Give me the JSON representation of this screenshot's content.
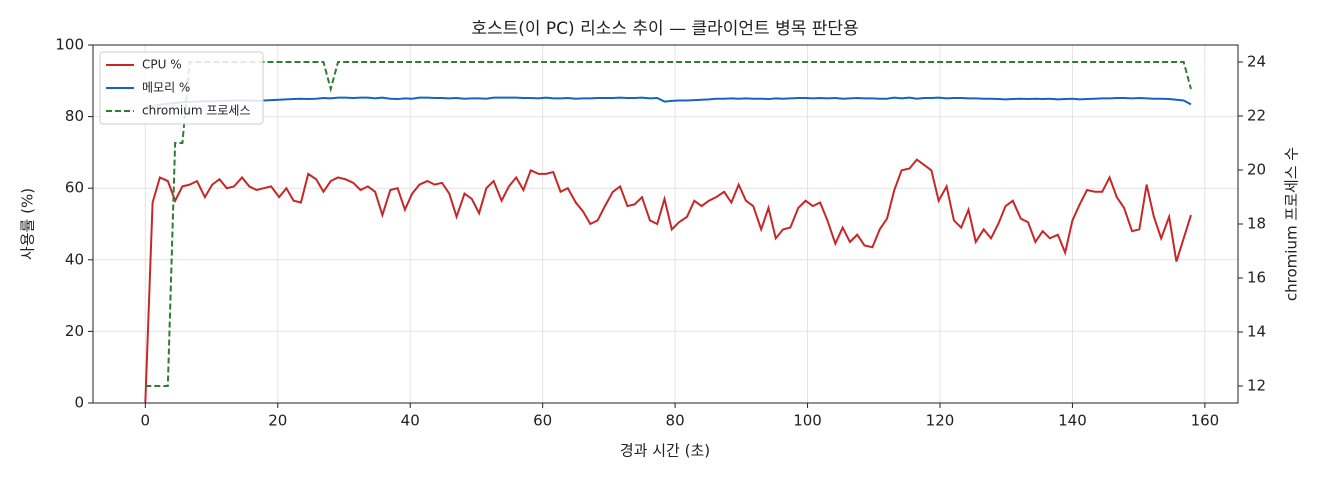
{
  "chart_data": {
    "type": "line",
    "title": "호스트(이 PC) 리소스 추이 — 클라이언트 병목 판단용",
    "x_label": "경과 시간 (초)",
    "y_label": "사용률 (%)",
    "y2_label": "chromium 프로세스 수",
    "xlim": [
      -7.9,
      165.0
    ],
    "xticks": [
      0,
      20,
      40,
      60,
      80,
      100,
      120,
      140,
      160
    ],
    "ylim": [
      0,
      100
    ],
    "yticks": [
      0,
      20,
      40,
      60,
      80,
      100
    ],
    "y2lim": [
      11.37,
      24.63
    ],
    "y2ticks": [
      12,
      14,
      16,
      18,
      20,
      22,
      24
    ],
    "grid": true,
    "legend": "upper left",
    "x": [
      0,
      1.1,
      2.2,
      3.4,
      4.5,
      5.6,
      6.7,
      7.8,
      9.0,
      10.1,
      11.2,
      12.3,
      13.4,
      14.6,
      15.7,
      16.8,
      17.9,
      19.0,
      20.2,
      21.3,
      22.4,
      23.5,
      24.6,
      25.8,
      26.9,
      28.0,
      29.1,
      30.2,
      31.4,
      32.5,
      33.6,
      34.7,
      35.8,
      37.0,
      38.1,
      39.2,
      40.3,
      41.4,
      42.6,
      43.7,
      44.8,
      45.9,
      47.0,
      48.2,
      49.3,
      50.4,
      51.5,
      52.6,
      53.8,
      54.9,
      56.0,
      57.1,
      58.2,
      59.4,
      60.5,
      61.6,
      62.7,
      63.8,
      65.0,
      66.1,
      67.2,
      68.3,
      69.4,
      70.6,
      71.7,
      72.8,
      73.9,
      75.0,
      76.2,
      77.3,
      78.4,
      79.5,
      80.6,
      81.8,
      82.9,
      84.0,
      85.1,
      86.2,
      87.4,
      88.5,
      89.6,
      90.7,
      91.8,
      93.0,
      94.1,
      95.2,
      96.3,
      97.4,
      98.6,
      99.7,
      100.8,
      101.9,
      103.0,
      104.2,
      105.3,
      106.4,
      107.5,
      108.6,
      109.8,
      110.9,
      112.0,
      113.1,
      114.2,
      115.4,
      116.5,
      117.6,
      118.7,
      119.8,
      121.0,
      122.1,
      123.2,
      124.3,
      125.4,
      126.6,
      127.7,
      128.8,
      129.9,
      131.0,
      132.2,
      133.3,
      134.4,
      135.5,
      136.6,
      137.8,
      138.9,
      140.0,
      141.1,
      142.2,
      143.4,
      144.5,
      145.6,
      146.7,
      147.8,
      149.0,
      150.1,
      151.2,
      152.3,
      153.4,
      154.6,
      155.7,
      156.8,
      157.9
    ],
    "series": [
      {
        "name": "CPU %",
        "color": "#c62828",
        "values": [
          0,
          56,
          63,
          62,
          56.5,
          60.5,
          61,
          62,
          57.5,
          61,
          62.5,
          60,
          60.5,
          63,
          60.5,
          59.5,
          60,
          60.5,
          57.5,
          60,
          56.5,
          56,
          64,
          62.5,
          59,
          62,
          63,
          62.5,
          61.5,
          59.5,
          60.5,
          59,
          52.5,
          59.5,
          60,
          54,
          58.5,
          61,
          62,
          61,
          61.5,
          58.5,
          52,
          58.5,
          57,
          53,
          60,
          62,
          56.5,
          60.5,
          63,
          59.5,
          65,
          64,
          64,
          64.5,
          59,
          60,
          56,
          53.5,
          50,
          51,
          55,
          59,
          60.5,
          55,
          55.5,
          57.5,
          51,
          50,
          57,
          48.5,
          50.5,
          52,
          56.5,
          55,
          56.5,
          57.5,
          59,
          56,
          61,
          56.5,
          55,
          48.5,
          54.5,
          46,
          48.5,
          49,
          54.5,
          56.5,
          55,
          56,
          51,
          44.5,
          49,
          45,
          47,
          44,
          43.5,
          48.5,
          51.5,
          59.5,
          65,
          65.5,
          68,
          66.5,
          65,
          56.5,
          60.5,
          51,
          49,
          54,
          45,
          48.5,
          46,
          50,
          55,
          56.5,
          51.5,
          50.5,
          45,
          48,
          46,
          47,
          42,
          51,
          55.5,
          59.5,
          59,
          59,
          63,
          57.5,
          54.5,
          48,
          48.5,
          61,
          52,
          46,
          52,
          39.5,
          46,
          52.5
        ]
      },
      {
        "name": "메모리 %",
        "color": "#1565c0",
        "values": [
          82.5,
          83,
          83.3,
          83.6,
          83.8,
          84,
          84.1,
          84.2,
          84.3,
          84.3,
          84.4,
          84.4,
          84.5,
          84.5,
          84.5,
          84.4,
          84.5,
          84.6,
          84.7,
          84.8,
          84.9,
          85,
          84.9,
          85,
          85.2,
          85.1,
          85.3,
          85.3,
          85.2,
          85.3,
          85.3,
          85.1,
          85.3,
          85,
          84.9,
          85.1,
          85,
          85.3,
          85.3,
          85.2,
          85.2,
          85.1,
          85.2,
          85,
          85.1,
          85.1,
          85,
          85.3,
          85.3,
          85.3,
          85.3,
          85.2,
          85.2,
          85.1,
          85.3,
          85.1,
          85.1,
          85.2,
          85,
          85.1,
          85.1,
          85.2,
          85.2,
          85.2,
          85.3,
          85.2,
          85.2,
          85.3,
          85.1,
          85.2,
          84.2,
          84.4,
          84.5,
          84.5,
          84.6,
          84.7,
          84.8,
          85,
          85,
          85.1,
          85,
          85.1,
          85,
          85,
          84.9,
          85.1,
          85,
          85.1,
          85.2,
          85.2,
          85.1,
          85.2,
          85.1,
          85.2,
          85,
          85.1,
          85.2,
          85.1,
          85.1,
          85,
          85,
          85.3,
          85.1,
          85.3,
          85,
          85.2,
          85.2,
          85.3,
          85.1,
          85.2,
          85.2,
          85.1,
          85.1,
          85,
          85,
          84.9,
          84.8,
          84.9,
          85,
          84.9,
          85,
          84.9,
          85,
          84.8,
          84.9,
          85,
          84.8,
          84.9,
          85,
          85.1,
          85.1,
          85.2,
          85.2,
          85.1,
          85.2,
          85.1,
          85,
          85,
          84.9,
          84.7,
          84.5,
          83.4
        ]
      },
      {
        "name": "chromium 프로세스",
        "color": "#2e7d32",
        "dash": true,
        "axis": "y2",
        "values": [
          12,
          12,
          12,
          12,
          21,
          21,
          24,
          24,
          24,
          24,
          24,
          24,
          24,
          24,
          24,
          24,
          24,
          24,
          24,
          24,
          24,
          24,
          24,
          24,
          24,
          23,
          24,
          24,
          24,
          24,
          24,
          24,
          24,
          24,
          24,
          24,
          24,
          24,
          24,
          24,
          24,
          24,
          24,
          24,
          24,
          24,
          24,
          24,
          24,
          24,
          24,
          24,
          24,
          24,
          24,
          24,
          24,
          24,
          24,
          24,
          24,
          24,
          24,
          24,
          24,
          24,
          24,
          24,
          24,
          24,
          24,
          24,
          24,
          24,
          24,
          24,
          24,
          24,
          24,
          24,
          24,
          24,
          24,
          24,
          24,
          24,
          24,
          24,
          24,
          24,
          24,
          24,
          24,
          24,
          24,
          24,
          24,
          24,
          24,
          24,
          24,
          24,
          24,
          24,
          24,
          24,
          24,
          24,
          24,
          24,
          24,
          24,
          24,
          24,
          24,
          24,
          24,
          24,
          24,
          24,
          24,
          24,
          24,
          24,
          24,
          24,
          24,
          24,
          24,
          24,
          24,
          24,
          24,
          24,
          24,
          24,
          24,
          24,
          24,
          24,
          24,
          23
        ]
      }
    ]
  }
}
